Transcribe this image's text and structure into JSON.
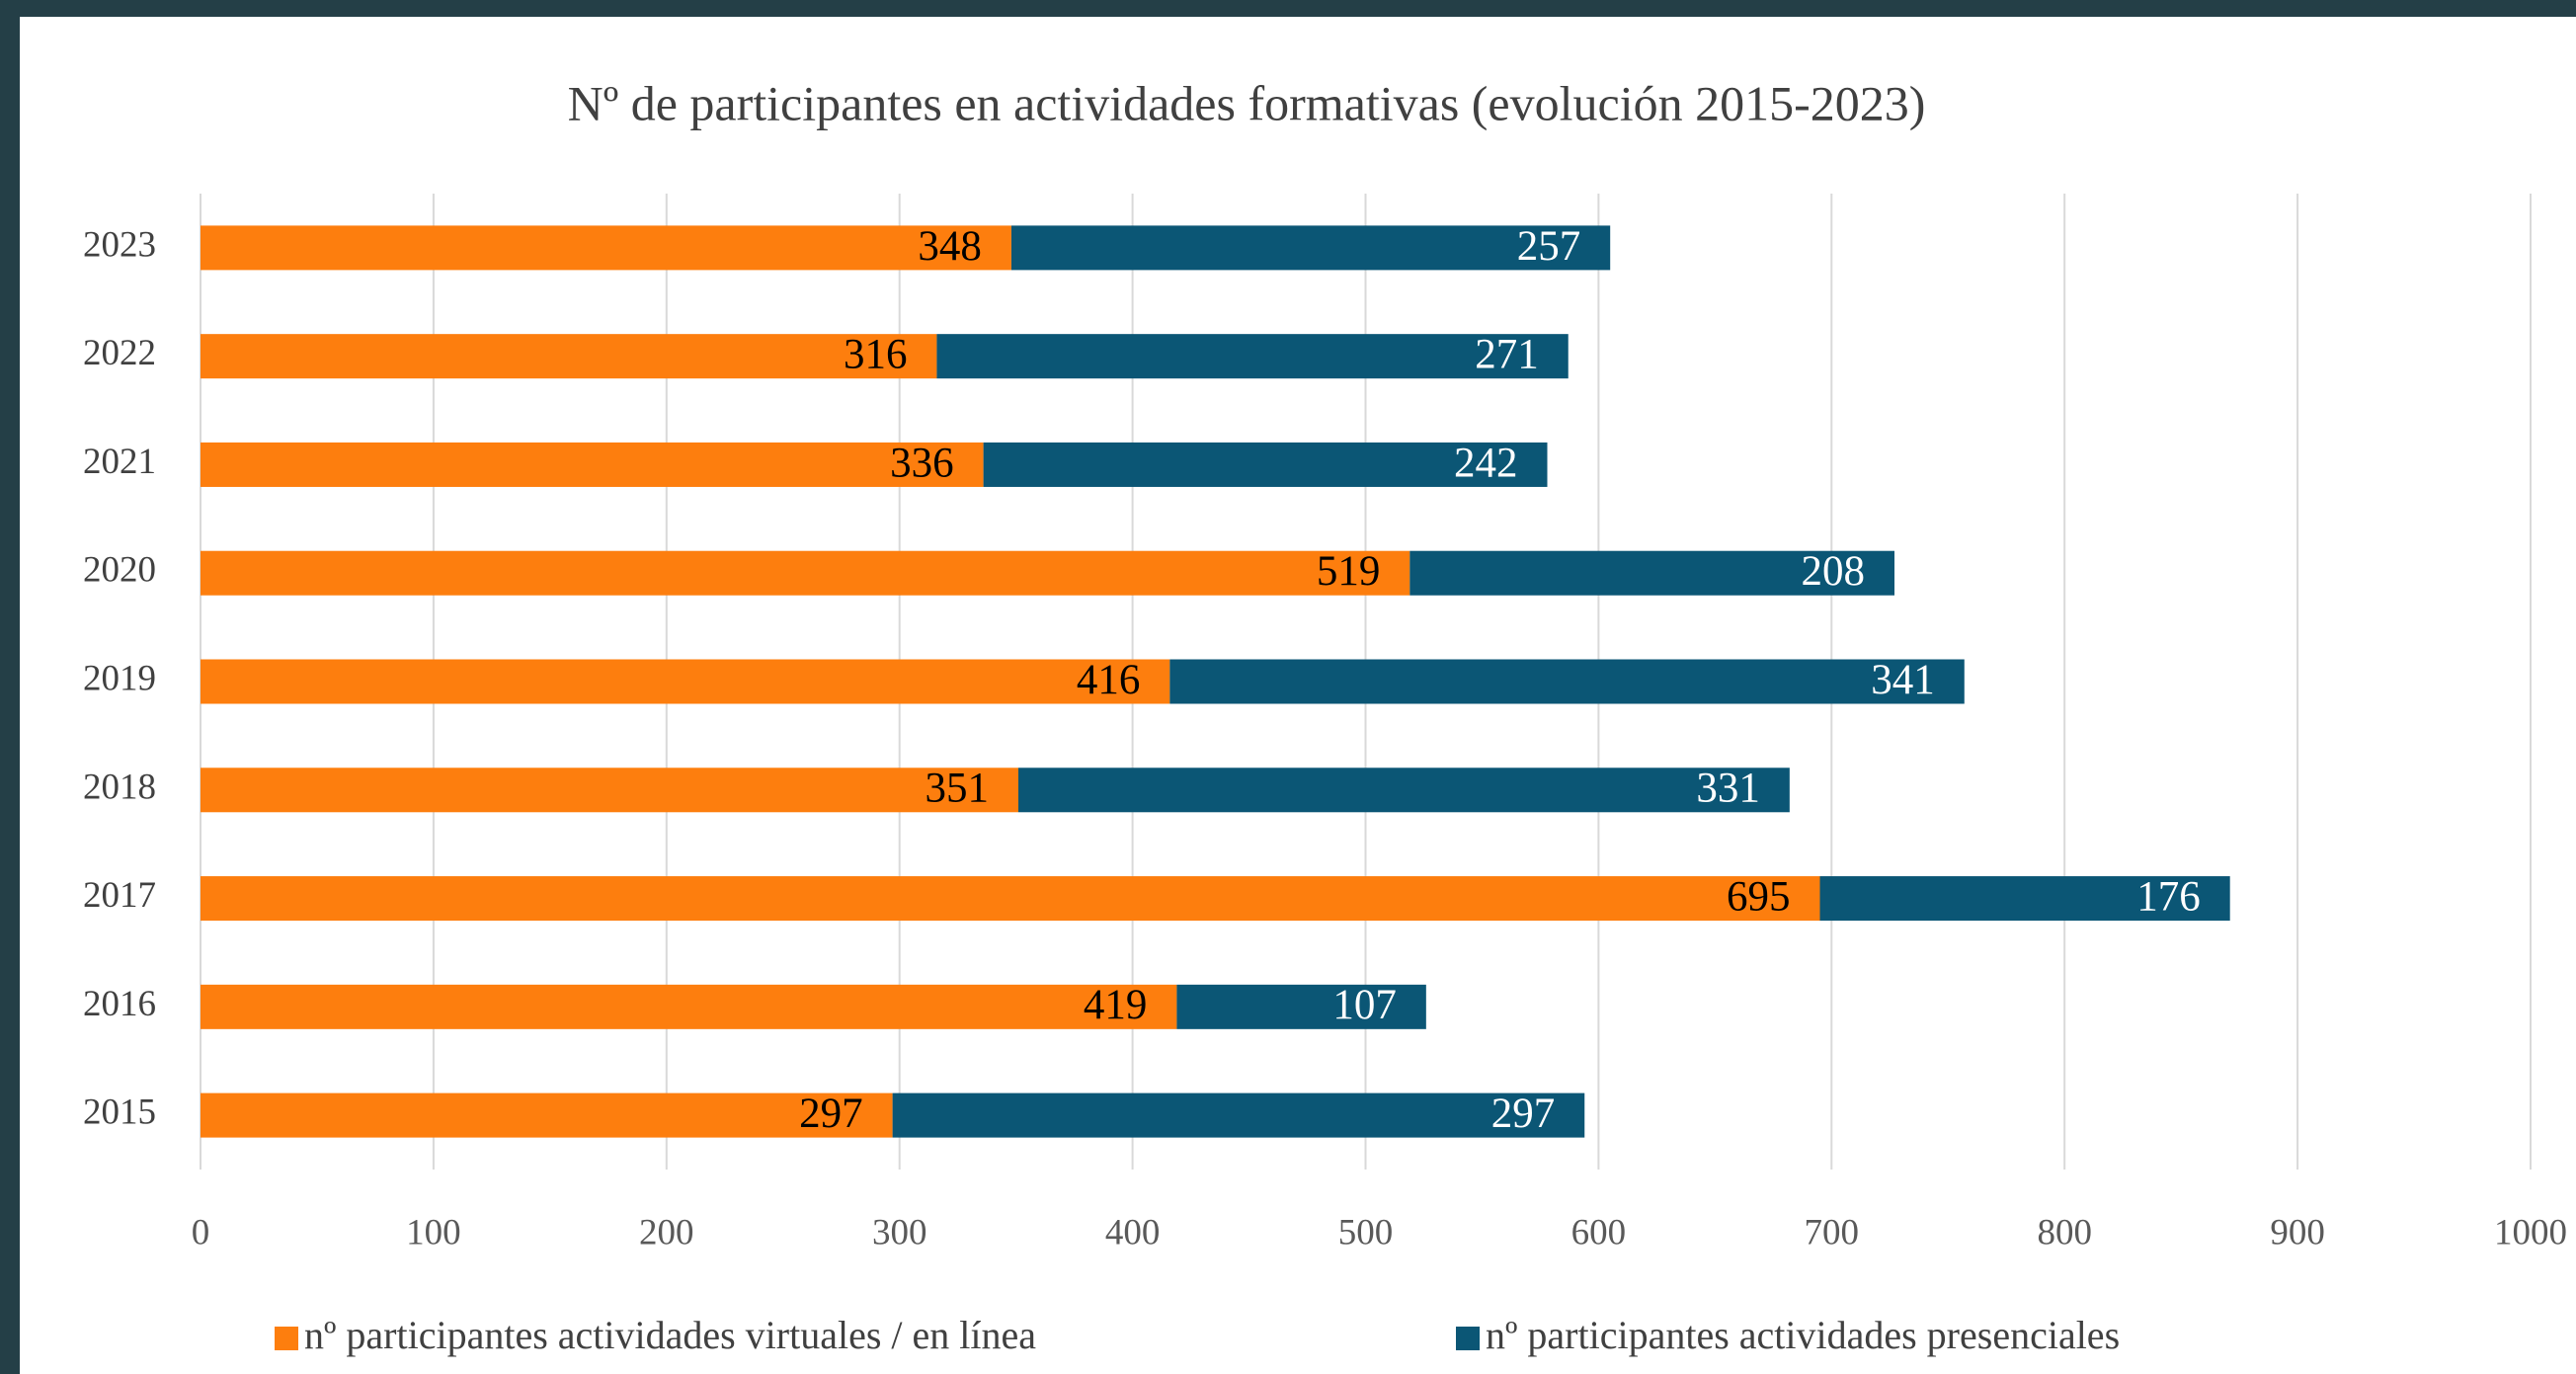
{
  "chart_data": {
    "type": "stacked-bar-horizontal",
    "title": "Nº de participantes en actividades formativas (evolución 2015-2023)",
    "categories": [
      "2015",
      "2016",
      "2017",
      "2018",
      "2019",
      "2020",
      "2021",
      "2022",
      "2023"
    ],
    "series": [
      {
        "name": "nº participantes actividades virtuales / en línea",
        "color": "#fd7e0e",
        "label_color": "#000000",
        "values": [
          297,
          419,
          695,
          351,
          416,
          519,
          336,
          316,
          348
        ]
      },
      {
        "name": "nº participantes actividades presenciales",
        "color": "#0b5675",
        "label_color": "#ffffff",
        "values": [
          297,
          107,
          176,
          331,
          341,
          208,
          242,
          271,
          257
        ]
      }
    ],
    "xlim": [
      0,
      1000
    ],
    "xticks": [
      0,
      100,
      200,
      300,
      400,
      500,
      600,
      700,
      800,
      900,
      1000
    ],
    "grid": true,
    "legend": "bottom"
  }
}
